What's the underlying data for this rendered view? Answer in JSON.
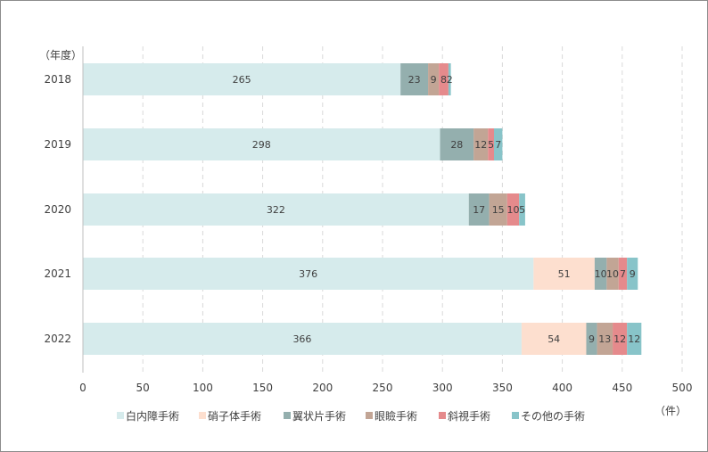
{
  "chart_data": {
    "type": "bar",
    "orientation": "horizontal",
    "stacked": true,
    "categories": [
      "2018",
      "2019",
      "2020",
      "2021",
      "2022"
    ],
    "category_axis_label": "（年度）",
    "value_axis_unit": "（件）",
    "xlim": [
      0,
      500
    ],
    "x_ticks": [
      0,
      50,
      100,
      150,
      200,
      250,
      300,
      350,
      400,
      450,
      500
    ],
    "grid": "vertical dashed",
    "legend_position": "bottom",
    "series": [
      {
        "name": "白内障手術",
        "color": "#d6ebec",
        "values": [
          265,
          298,
          322,
          376,
          366
        ]
      },
      {
        "name": "硝子体手術",
        "color": "#fddfcf",
        "values": [
          0,
          0,
          0,
          51,
          54
        ]
      },
      {
        "name": "翼状片手術",
        "color": "#94afae",
        "values": [
          23,
          28,
          17,
          10,
          9
        ]
      },
      {
        "name": "眼瞼手術",
        "color": "#c2a595",
        "values": [
          9,
          12,
          15,
          10,
          13
        ]
      },
      {
        "name": "斜視手術",
        "color": "#e58a8c",
        "values": [
          8,
          5,
          10,
          7,
          12
        ]
      },
      {
        "name": "その他の手術",
        "color": "#88c4c9",
        "values": [
          2,
          7,
          5,
          9,
          12
        ]
      }
    ]
  }
}
